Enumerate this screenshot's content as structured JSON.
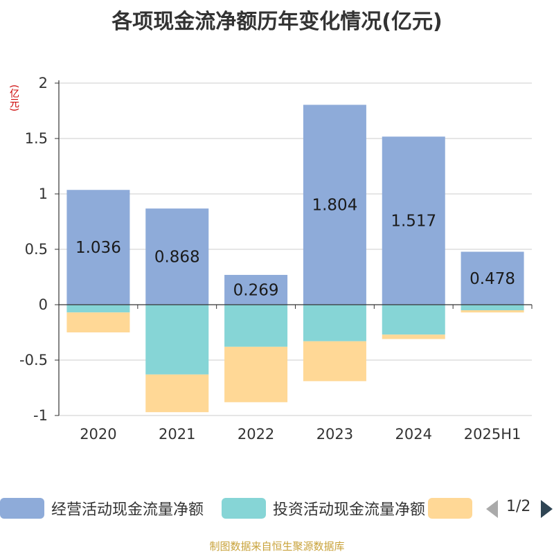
{
  "chart_data": {
    "type": "bar",
    "stacked": true,
    "title": "各项现金流净额历年变化情况(亿元)",
    "y_unit": "(亿元)",
    "categories": [
      "2020",
      "2021",
      "2022",
      "2023",
      "2024",
      "2025H1"
    ],
    "ylim": [
      -1,
      2
    ],
    "yticks": [
      "2",
      "1.5",
      "1",
      "0.5",
      "0",
      "-0.5",
      "-1"
    ],
    "ytick_values": [
      2,
      1.5,
      1,
      0.5,
      0,
      -0.5,
      -1
    ],
    "grid": true,
    "legend_position": "bottom",
    "series": [
      {
        "name": "经营活动现金流量净额",
        "color": "#8eabd9",
        "values": [
          1.036,
          0.868,
          0.269,
          1.804,
          1.517,
          0.478
        ],
        "labels": [
          "1.036",
          "0.868",
          "0.269",
          "1.804",
          "1.517",
          "0.478"
        ]
      },
      {
        "name": "投资活动现金流量净额",
        "color": "#86d5d6",
        "values": [
          -0.07,
          -0.63,
          -0.38,
          -0.33,
          -0.27,
          -0.05
        ]
      },
      {
        "name": "",
        "color": "#ffd896",
        "values": [
          -0.18,
          -0.34,
          -0.5,
          -0.36,
          -0.04,
          -0.02
        ]
      }
    ]
  },
  "legend": {
    "items": [
      "经营活动现金流量净额",
      "投资活动现金流量净额",
      ""
    ],
    "pager": "1/2"
  },
  "source": "制图数据来自恒生聚源数据库"
}
